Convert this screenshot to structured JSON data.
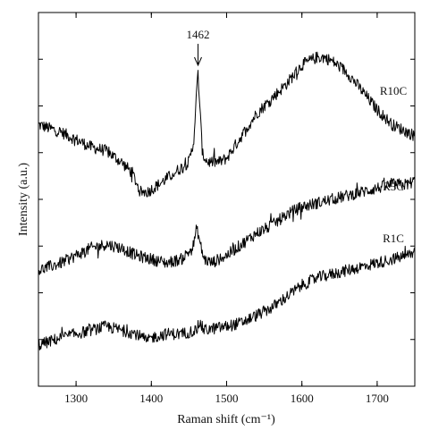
{
  "chart_data": {
    "type": "line",
    "title": "",
    "xlabel": "Raman shift (cm⁻¹)",
    "ylabel": "Intensity (a.u.)",
    "xlim": [
      1250,
      1750
    ],
    "ylim": [
      0,
      100
    ],
    "xticks": [
      "1300",
      "1400",
      "1500",
      "1600",
      "1700"
    ],
    "ytick_labels": false,
    "grid": false,
    "legend": "none",
    "line_color": "#000000",
    "annotations": [
      {
        "text": "1462",
        "x": 1462,
        "arrow": "down"
      }
    ],
    "series": [
      {
        "name": "R10C",
        "x": [
          1250,
          1280,
          1300,
          1320,
          1340,
          1360,
          1375,
          1385,
          1395,
          1410,
          1430,
          1450,
          1456,
          1460,
          1462,
          1464,
          1468,
          1475,
          1490,
          1500,
          1520,
          1540,
          1560,
          1580,
          1600,
          1620,
          1630,
          1640,
          1660,
          1680,
          1700,
          1720,
          1740,
          1750
        ],
        "y": [
          70,
          68,
          66,
          64,
          63,
          60,
          57,
          52,
          52,
          54,
          57,
          60,
          65,
          78,
          84,
          76,
          62,
          60,
          60,
          61,
          67,
          73,
          77,
          81,
          86,
          88,
          88,
          87,
          84,
          79,
          74,
          70,
          68,
          67
        ]
      },
      {
        "name": "R5C",
        "x": [
          1250,
          1280,
          1300,
          1320,
          1340,
          1360,
          1380,
          1400,
          1420,
          1440,
          1455,
          1460,
          1462,
          1465,
          1470,
          1480,
          1500,
          1520,
          1540,
          1560,
          1580,
          1600,
          1620,
          1640,
          1660,
          1680,
          1700,
          1720,
          1740,
          1750
        ],
        "y": [
          31,
          33,
          35,
          37,
          38,
          37,
          35,
          34,
          33,
          34,
          37,
          42,
          41,
          38,
          34,
          33,
          35,
          38,
          41,
          43,
          46,
          48,
          49,
          50,
          51,
          52,
          53,
          54,
          54,
          55
        ]
      },
      {
        "name": "R1C",
        "x": [
          1250,
          1280,
          1300,
          1320,
          1340,
          1360,
          1380,
          1395,
          1400,
          1420,
          1440,
          1460,
          1464,
          1470,
          1500,
          1520,
          1540,
          1560,
          1580,
          1600,
          1620,
          1640,
          1660,
          1680,
          1700,
          1720,
          1740,
          1750
        ],
        "y": [
          11,
          13,
          14,
          15,
          16,
          15,
          14,
          12,
          13,
          14,
          14,
          15,
          17,
          15,
          16,
          17,
          19,
          21,
          24,
          27,
          29,
          30,
          31,
          32,
          33,
          34,
          35,
          36
        ]
      }
    ]
  }
}
